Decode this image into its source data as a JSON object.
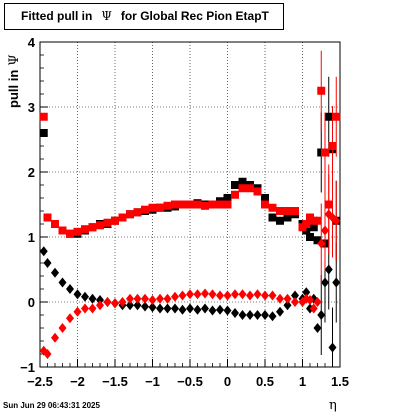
{
  "chart_data": {
    "type": "scatter",
    "title_parts": [
      "Fitted pull in",
      "Ψ",
      "for Global Rec Pion EtapT"
    ],
    "xlabel": "η",
    "ylabel_parts": [
      "pull in",
      "Ψ"
    ],
    "xlim": [
      -2.5,
      1.5
    ],
    "ylim": [
      -1,
      4
    ],
    "xticks": [
      -2.5,
      -2,
      -1.5,
      -1,
      -0.5,
      0,
      0.5,
      1,
      1.5
    ],
    "xtick_labels": [
      "−2.5",
      "−2",
      "−1.5",
      "−1",
      "−0.5",
      "0",
      "0.5",
      "1",
      "1.5"
    ],
    "yticks": [
      -1,
      0,
      1,
      2,
      3,
      4
    ],
    "ytick_labels": [
      "−1",
      "0",
      "1",
      "2",
      "3",
      "4"
    ],
    "grid": true,
    "series": [
      {
        "color": "#000000",
        "marker": "square",
        "x": [
          -2.45,
          -2.4,
          -2.3,
          -2.2,
          -2.1,
          -2.0,
          -1.9,
          -1.8,
          -1.7,
          -1.6,
          -1.5,
          -1.4,
          -1.3,
          -1.2,
          -1.1,
          -1.0,
          -0.9,
          -0.8,
          -0.7,
          -0.6,
          -0.5,
          -0.4,
          -0.3,
          -0.2,
          -0.1,
          0.0,
          0.1,
          0.2,
          0.3,
          0.4,
          0.5,
          0.6,
          0.7,
          0.8,
          0.9,
          1.0,
          1.05,
          1.1,
          1.15,
          1.2,
          1.25,
          1.3,
          1.35,
          1.4,
          1.45
        ],
        "y": [
          2.6,
          1.3,
          1.2,
          1.1,
          1.05,
          1.05,
          1.1,
          1.15,
          1.2,
          1.2,
          1.25,
          1.3,
          1.35,
          1.38,
          1.4,
          1.42,
          1.45,
          1.45,
          1.47,
          1.5,
          1.5,
          1.52,
          1.5,
          1.5,
          1.55,
          1.6,
          1.8,
          1.85,
          1.8,
          1.75,
          1.6,
          1.3,
          1.25,
          1.3,
          1.35,
          1.2,
          1.1,
          1.0,
          1.15,
          0.95,
          2.3,
          0.9,
          2.85,
          2.35,
          1.25
        ]
      },
      {
        "color": "#ff0000",
        "marker": "square",
        "x": [
          -2.45,
          -2.4,
          -2.3,
          -2.2,
          -2.1,
          -2.0,
          -1.9,
          -1.8,
          -1.7,
          -1.6,
          -1.5,
          -1.4,
          -1.3,
          -1.2,
          -1.1,
          -1.0,
          -0.9,
          -0.8,
          -0.7,
          -0.6,
          -0.5,
          -0.4,
          -0.3,
          -0.2,
          -0.1,
          0.0,
          0.1,
          0.2,
          0.3,
          0.4,
          0.5,
          0.6,
          0.7,
          0.8,
          0.9,
          1.0,
          1.05,
          1.1,
          1.15,
          1.2,
          1.25,
          1.3,
          1.35,
          1.4,
          1.45
        ],
        "y": [
          2.85,
          1.3,
          1.2,
          1.1,
          1.05,
          1.08,
          1.12,
          1.15,
          1.18,
          1.22,
          1.25,
          1.3,
          1.35,
          1.38,
          1.42,
          1.45,
          1.45,
          1.48,
          1.5,
          1.5,
          1.5,
          1.5,
          1.48,
          1.5,
          1.5,
          1.5,
          1.65,
          1.75,
          1.75,
          1.7,
          1.5,
          1.45,
          1.4,
          1.4,
          1.4,
          1.15,
          1.2,
          1.3,
          1.25,
          1.25,
          3.25,
          2.3,
          1.5,
          2.4,
          2.85
        ]
      },
      {
        "color": "#000000",
        "marker": "diamond",
        "x": [
          -2.45,
          -2.4,
          -2.3,
          -2.2,
          -2.1,
          -2.0,
          -1.9,
          -1.8,
          -1.7,
          -1.6,
          -1.5,
          -1.4,
          -1.3,
          -1.2,
          -1.1,
          -1.0,
          -0.9,
          -0.8,
          -0.7,
          -0.6,
          -0.5,
          -0.4,
          -0.3,
          -0.2,
          -0.1,
          0.0,
          0.1,
          0.2,
          0.3,
          0.4,
          0.5,
          0.6,
          0.7,
          0.8,
          0.9,
          1.0,
          1.05,
          1.1,
          1.15,
          1.2,
          1.25,
          1.3,
          1.35,
          1.4,
          1.45
        ],
        "y": [
          0.78,
          0.6,
          0.45,
          0.3,
          0.2,
          0.12,
          0.08,
          0.05,
          0.03,
          0.0,
          -0.02,
          -0.05,
          -0.05,
          -0.05,
          -0.07,
          -0.08,
          -0.1,
          -0.1,
          -0.1,
          -0.12,
          -0.1,
          -0.12,
          -0.1,
          -0.13,
          -0.12,
          -0.13,
          -0.17,
          -0.2,
          -0.2,
          -0.2,
          -0.2,
          -0.22,
          -0.15,
          -0.05,
          0.1,
          0.05,
          0.15,
          -0.1,
          0.05,
          -0.4,
          -0.2,
          0.3,
          0.5,
          -0.7,
          0.3
        ]
      },
      {
        "color": "#ff0000",
        "marker": "diamond",
        "x": [
          -2.45,
          -2.4,
          -2.3,
          -2.2,
          -2.1,
          -2.0,
          -1.9,
          -1.8,
          -1.7,
          -1.6,
          -1.5,
          -1.4,
          -1.3,
          -1.2,
          -1.1,
          -1.0,
          -0.9,
          -0.8,
          -0.7,
          -0.6,
          -0.5,
          -0.4,
          -0.3,
          -0.2,
          -0.1,
          0.0,
          0.1,
          0.2,
          0.3,
          0.4,
          0.5,
          0.6,
          0.7,
          0.8,
          0.9,
          1.0,
          1.05,
          1.1,
          1.15,
          1.2,
          1.25,
          1.3,
          1.35,
          1.4,
          1.45
        ],
        "y": [
          -0.75,
          -0.8,
          -0.55,
          -0.4,
          -0.25,
          -0.15,
          -0.1,
          -0.1,
          -0.05,
          0.0,
          -0.02,
          0.0,
          0.05,
          0.05,
          0.05,
          0.03,
          0.05,
          0.05,
          0.08,
          0.1,
          0.12,
          0.12,
          0.13,
          0.12,
          0.1,
          0.1,
          0.12,
          0.12,
          0.1,
          0.12,
          0.1,
          0.1,
          0.05,
          0.05,
          0.0,
          0.0,
          0.05,
          0.03,
          -0.1,
          0.0,
          0.9,
          1.1,
          1.35,
          1.3,
          1.25
        ]
      }
    ],
    "footer": "Sun Jun 29 06:43:31 2025"
  }
}
